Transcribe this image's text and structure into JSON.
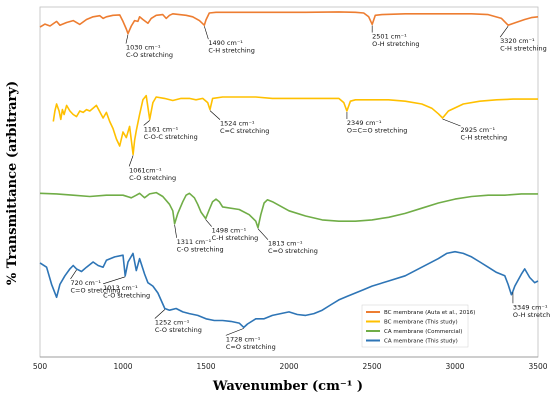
{
  "chart_data": {
    "type": "line",
    "xlabel": "Wavenumber  (cm⁻¹  )",
    "ylabel": "% Transmittance (arbitrary)",
    "xlim": [
      500,
      3500
    ],
    "x_ticks": [
      "500",
      "1000",
      "1500",
      "2000",
      "2500",
      "3000",
      "3500"
    ],
    "grid": false,
    "legend_position": "bottom-right",
    "series": [
      {
        "name": "BC membrane (Auta et al., 2016)",
        "color": "#ED7D31",
        "points": [
          [
            500,
            45
          ],
          [
            530,
            37
          ],
          [
            560,
            42
          ],
          [
            600,
            30
          ],
          [
            620,
            40
          ],
          [
            660,
            33
          ],
          [
            700,
            28
          ],
          [
            740,
            38
          ],
          [
            780,
            25
          ],
          [
            820,
            18
          ],
          [
            860,
            15
          ],
          [
            880,
            22
          ],
          [
            900,
            18
          ],
          [
            940,
            14
          ],
          [
            980,
            13
          ],
          [
            1000,
            30
          ],
          [
            1020,
            50
          ],
          [
            1030,
            62
          ],
          [
            1050,
            42
          ],
          [
            1070,
            28
          ],
          [
            1090,
            30
          ],
          [
            1100,
            18
          ],
          [
            1120,
            25
          ],
          [
            1150,
            35
          ],
          [
            1170,
            22
          ],
          [
            1200,
            14
          ],
          [
            1240,
            12
          ],
          [
            1260,
            22
          ],
          [
            1280,
            14
          ],
          [
            1300,
            10
          ],
          [
            1340,
            12
          ],
          [
            1380,
            14
          ],
          [
            1420,
            18
          ],
          [
            1460,
            28
          ],
          [
            1490,
            40
          ],
          [
            1500,
            26
          ],
          [
            1520,
            8
          ],
          [
            1560,
            6
          ],
          [
            1700,
            6
          ],
          [
            1900,
            6
          ],
          [
            2100,
            6
          ],
          [
            2300,
            5
          ],
          [
            2400,
            6
          ],
          [
            2450,
            8
          ],
          [
            2480,
            18
          ],
          [
            2501,
            38
          ],
          [
            2520,
            14
          ],
          [
            2560,
            12
          ],
          [
            2700,
            10
          ],
          [
            2900,
            10
          ],
          [
            3000,
            10
          ],
          [
            3100,
            10
          ],
          [
            3200,
            12
          ],
          [
            3280,
            22
          ],
          [
            3320,
            40
          ],
          [
            3360,
            34
          ],
          [
            3420,
            25
          ],
          [
            3460,
            20
          ],
          [
            3500,
            18
          ]
        ]
      },
      {
        "name": "BC membrane (This study)",
        "color": "#FFC000",
        "points": [
          [
            580,
            45
          ],
          [
            590,
            30
          ],
          [
            600,
            20
          ],
          [
            615,
            30
          ],
          [
            625,
            42
          ],
          [
            635,
            28
          ],
          [
            645,
            35
          ],
          [
            660,
            22
          ],
          [
            680,
            30
          ],
          [
            700,
            35
          ],
          [
            720,
            38
          ],
          [
            740,
            30
          ],
          [
            760,
            32
          ],
          [
            780,
            28
          ],
          [
            800,
            30
          ],
          [
            840,
            22
          ],
          [
            880,
            40
          ],
          [
            900,
            32
          ],
          [
            920,
            45
          ],
          [
            940,
            55
          ],
          [
            960,
            70
          ],
          [
            980,
            80
          ],
          [
            1000,
            60
          ],
          [
            1020,
            68
          ],
          [
            1040,
            52
          ],
          [
            1061,
            92
          ],
          [
            1070,
            72
          ],
          [
            1080,
            58
          ],
          [
            1100,
            35
          ],
          [
            1120,
            14
          ],
          [
            1140,
            8
          ],
          [
            1161,
            42
          ],
          [
            1180,
            18
          ],
          [
            1200,
            10
          ],
          [
            1250,
            12
          ],
          [
            1300,
            15
          ],
          [
            1350,
            12
          ],
          [
            1400,
            12
          ],
          [
            1440,
            14
          ],
          [
            1480,
            12
          ],
          [
            1510,
            18
          ],
          [
            1524,
            28
          ],
          [
            1540,
            12
          ],
          [
            1600,
            10
          ],
          [
            1700,
            10
          ],
          [
            1800,
            10
          ],
          [
            1900,
            12
          ],
          [
            2000,
            12
          ],
          [
            2100,
            12
          ],
          [
            2200,
            12
          ],
          [
            2300,
            12
          ],
          [
            2330,
            18
          ],
          [
            2349,
            30
          ],
          [
            2370,
            16
          ],
          [
            2400,
            14
          ],
          [
            2500,
            14
          ],
          [
            2600,
            14
          ],
          [
            2700,
            16
          ],
          [
            2800,
            20
          ],
          [
            2860,
            26
          ],
          [
            2900,
            34
          ],
          [
            2925,
            40
          ],
          [
            2960,
            30
          ],
          [
            3050,
            20
          ],
          [
            3150,
            16
          ],
          [
            3250,
            14
          ],
          [
            3350,
            13
          ],
          [
            3450,
            13
          ],
          [
            3500,
            13
          ]
        ]
      },
      {
        "name": "CA membrane (Commercial)",
        "color": "#70AD47",
        "points": [
          [
            500,
            5
          ],
          [
            600,
            6
          ],
          [
            700,
            8
          ],
          [
            800,
            10
          ],
          [
            900,
            8
          ],
          [
            1000,
            8
          ],
          [
            1050,
            12
          ],
          [
            1080,
            8
          ],
          [
            1100,
            5
          ],
          [
            1130,
            12
          ],
          [
            1160,
            6
          ],
          [
            1200,
            4
          ],
          [
            1240,
            10
          ],
          [
            1280,
            22
          ],
          [
            1300,
            32
          ],
          [
            1311,
            52
          ],
          [
            1330,
            36
          ],
          [
            1360,
            18
          ],
          [
            1380,
            8
          ],
          [
            1400,
            5
          ],
          [
            1430,
            12
          ],
          [
            1450,
            22
          ],
          [
            1470,
            34
          ],
          [
            1498,
            44
          ],
          [
            1520,
            30
          ],
          [
            1540,
            18
          ],
          [
            1560,
            14
          ],
          [
            1580,
            18
          ],
          [
            1600,
            26
          ],
          [
            1700,
            30
          ],
          [
            1760,
            38
          ],
          [
            1800,
            48
          ],
          [
            1813,
            58
          ],
          [
            1830,
            38
          ],
          [
            1850,
            20
          ],
          [
            1870,
            15
          ],
          [
            1900,
            18
          ],
          [
            2000,
            32
          ],
          [
            2100,
            40
          ],
          [
            2200,
            46
          ],
          [
            2300,
            48
          ],
          [
            2400,
            48
          ],
          [
            2500,
            46
          ],
          [
            2600,
            42
          ],
          [
            2700,
            36
          ],
          [
            2800,
            28
          ],
          [
            2900,
            20
          ],
          [
            3000,
            14
          ],
          [
            3100,
            10
          ],
          [
            3200,
            8
          ],
          [
            3300,
            8
          ],
          [
            3400,
            6
          ],
          [
            3500,
            6
          ]
        ]
      },
      {
        "name": "CA membrane (This study)",
        "color": "#2E75B6",
        "points": [
          [
            500,
            15
          ],
          [
            540,
            20
          ],
          [
            570,
            40
          ],
          [
            600,
            55
          ],
          [
            620,
            40
          ],
          [
            650,
            30
          ],
          [
            680,
            22
          ],
          [
            700,
            18
          ],
          [
            720,
            22
          ],
          [
            750,
            25
          ],
          [
            780,
            20
          ],
          [
            820,
            14
          ],
          [
            850,
            18
          ],
          [
            880,
            20
          ],
          [
            900,
            12
          ],
          [
            950,
            8
          ],
          [
            1000,
            6
          ],
          [
            1013,
            30
          ],
          [
            1030,
            14
          ],
          [
            1060,
            4
          ],
          [
            1080,
            24
          ],
          [
            1100,
            10
          ],
          [
            1130,
            28
          ],
          [
            1150,
            38
          ],
          [
            1180,
            42
          ],
          [
            1210,
            50
          ],
          [
            1252,
            68
          ],
          [
            1280,
            70
          ],
          [
            1320,
            68
          ],
          [
            1360,
            72
          ],
          [
            1400,
            74
          ],
          [
            1450,
            76
          ],
          [
            1500,
            80
          ],
          [
            1550,
            82
          ],
          [
            1600,
            82
          ],
          [
            1650,
            83
          ],
          [
            1700,
            85
          ],
          [
            1728,
            90
          ],
          [
            1750,
            86
          ],
          [
            1800,
            80
          ],
          [
            1850,
            80
          ],
          [
            1900,
            76
          ],
          [
            1950,
            74
          ],
          [
            2000,
            72
          ],
          [
            2050,
            75
          ],
          [
            2100,
            76
          ],
          [
            2150,
            74
          ],
          [
            2200,
            70
          ],
          [
            2250,
            64
          ],
          [
            2300,
            58
          ],
          [
            2350,
            54
          ],
          [
            2400,
            50
          ],
          [
            2450,
            46
          ],
          [
            2500,
            42
          ],
          [
            2600,
            36
          ],
          [
            2700,
            30
          ],
          [
            2800,
            20
          ],
          [
            2900,
            10
          ],
          [
            2950,
            4
          ],
          [
            3000,
            2
          ],
          [
            3050,
            4
          ],
          [
            3100,
            8
          ],
          [
            3150,
            14
          ],
          [
            3200,
            20
          ],
          [
            3250,
            26
          ],
          [
            3300,
            30
          ],
          [
            3320,
            40
          ],
          [
            3340,
            52
          ],
          [
            3349,
            48
          ],
          [
            3360,
            42
          ],
          [
            3400,
            28
          ],
          [
            3420,
            22
          ],
          [
            3450,
            32
          ],
          [
            3480,
            38
          ],
          [
            3500,
            36
          ]
        ]
      }
    ],
    "annotations": [
      {
        "series": 0,
        "wavenumber": 1030,
        "lines": [
          "1030 cm⁻¹",
          "C-O stretching"
        ]
      },
      {
        "series": 0,
        "wavenumber": 1490,
        "lines": [
          "1490 cm⁻¹",
          "C-H stretching"
        ]
      },
      {
        "series": 0,
        "wavenumber": 2501,
        "lines": [
          "2501 cm⁻¹",
          "O-H stretching"
        ]
      },
      {
        "series": 0,
        "wavenumber": 3320,
        "lines": [
          "3320 cm⁻¹",
          "C-H stretching"
        ]
      },
      {
        "series": 1,
        "wavenumber": 1161,
        "lines": [
          "1161 cm⁻¹",
          "C-O-C stretching"
        ]
      },
      {
        "series": 1,
        "wavenumber": 1524,
        "lines": [
          "1524 cm⁻¹",
          "C=C stretching"
        ]
      },
      {
        "series": 1,
        "wavenumber": 2349,
        "lines": [
          "2349 cm⁻¹",
          "O=C=O stretching"
        ]
      },
      {
        "series": 1,
        "wavenumber": 2925,
        "lines": [
          "2925 cm⁻¹",
          "C-H stretching"
        ]
      },
      {
        "series": 1,
        "wavenumber": 1061,
        "lines": [
          "1061cm⁻¹",
          "C-O stretching"
        ]
      },
      {
        "series": 2,
        "wavenumber": 1311,
        "lines": [
          "1311 cm⁻¹",
          "C-O stretching"
        ]
      },
      {
        "series": 2,
        "wavenumber": 1498,
        "lines": [
          "1498 cm⁻¹",
          "C-H stretching"
        ]
      },
      {
        "series": 2,
        "wavenumber": 1813,
        "lines": [
          "1813 cm⁻¹",
          "C=O stretching"
        ]
      },
      {
        "series": 3,
        "wavenumber": 720,
        "lines": [
          "720 cm⁻¹",
          "C=O stretching"
        ]
      },
      {
        "series": 3,
        "wavenumber": 1013,
        "lines": [
          "1013 cm⁻¹",
          "C-O stretching"
        ]
      },
      {
        "series": 3,
        "wavenumber": 1252,
        "lines": [
          "1252 cm⁻¹",
          "C-O stretching"
        ]
      },
      {
        "series": 3,
        "wavenumber": 1728,
        "lines": [
          "1728 cm⁻¹",
          "C=O stretching"
        ]
      },
      {
        "series": 3,
        "wavenumber": 3349,
        "lines": [
          "3349 cm⁻¹",
          "O-H stretching"
        ]
      }
    ]
  }
}
